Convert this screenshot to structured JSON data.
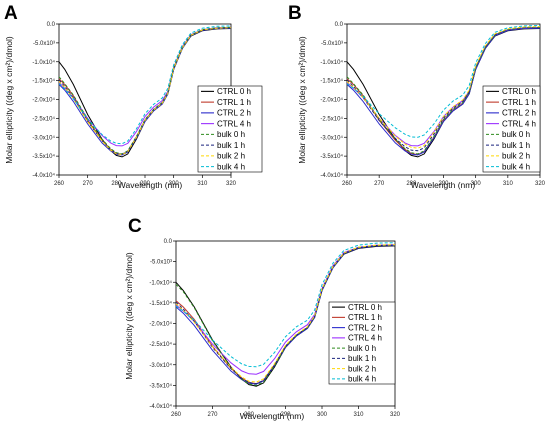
{
  "chart_data": [
    {
      "panel": "A",
      "type": "line",
      "xlabel": "Wavelength (nm)",
      "ylabel": "Molar ellipticity ((deg x cm²)/dmol)",
      "xlim": [
        260,
        320
      ],
      "ylim": [
        -40000,
        0
      ],
      "xticks": [
        260,
        270,
        280,
        290,
        300,
        310,
        320
      ],
      "yticks": [
        "0.0",
        "-5.0x10³",
        "-1.0x10⁴",
        "-1.5x10⁴",
        "-2.0x10⁴",
        "-2.5x10⁴",
        "-3.0x10⁴",
        "-3.5x10⁴",
        "-4.0x10⁴"
      ],
      "legend_position": "right",
      "x": [
        260,
        262,
        265,
        270,
        275,
        278,
        280,
        282,
        284,
        287,
        290,
        293,
        296,
        298,
        300,
        303,
        306,
        310,
        315,
        320
      ],
      "series": [
        {
          "name": "CTRL 0 h",
          "color": "#000000",
          "dash": "solid",
          "values": [
            -10000,
            -12000,
            -16000,
            -24000,
            -30500,
            -33500,
            -34800,
            -35200,
            -34400,
            -30500,
            -25800,
            -23000,
            -21200,
            -18500,
            -12000,
            -6500,
            -3200,
            -1800,
            -1300,
            -1200
          ]
        },
        {
          "name": "CTRL 1 h",
          "color": "#c0392b",
          "dash": "solid",
          "values": [
            -14500,
            -16000,
            -19000,
            -25500,
            -30800,
            -33200,
            -34300,
            -34600,
            -33800,
            -30000,
            -25500,
            -22800,
            -21000,
            -18300,
            -11800,
            -6300,
            -3000,
            -1600,
            -1100,
            -1000
          ]
        },
        {
          "name": "CTRL 2 h",
          "color": "#2b2bcc",
          "dash": "solid",
          "values": [
            -16000,
            -17500,
            -20500,
            -26500,
            -31500,
            -33600,
            -34500,
            -34700,
            -33900,
            -30200,
            -25800,
            -23000,
            -21200,
            -18500,
            -12000,
            -6500,
            -3100,
            -1700,
            -1200,
            -1100
          ]
        },
        {
          "name": "CTRL 4 h",
          "color": "#9b30ff",
          "dash": "solid",
          "values": [
            -15500,
            -17000,
            -19500,
            -25000,
            -29500,
            -31500,
            -32200,
            -32300,
            -31600,
            -28500,
            -24500,
            -22000,
            -20300,
            -17800,
            -11500,
            -6000,
            -2800,
            -1500,
            -1000,
            -900
          ]
        },
        {
          "name": "bulk 0 h",
          "color": "#2e8b1e",
          "dash": "dashed",
          "values": [
            -14000,
            -15800,
            -18800,
            -25200,
            -30500,
            -33000,
            -34100,
            -34400,
            -33600,
            -29800,
            -25300,
            -22600,
            -20800,
            -18100,
            -11600,
            -6200,
            -2900,
            -1500,
            -1000,
            -900
          ]
        },
        {
          "name": "bulk 1 h",
          "color": "#1a237e",
          "dash": "dashed",
          "values": [
            -14800,
            -16500,
            -19500,
            -25800,
            -30900,
            -33300,
            -34300,
            -34500,
            -33700,
            -29900,
            -25400,
            -22700,
            -20900,
            -18200,
            -11700,
            -6300,
            -3000,
            -1600,
            -1100,
            -1000
          ]
        },
        {
          "name": "bulk 2 h",
          "color": "#ffd700",
          "dash": "dashed",
          "values": [
            -15200,
            -16800,
            -19800,
            -25900,
            -31000,
            -33400,
            -34400,
            -34600,
            -33800,
            -30000,
            -25500,
            -22800,
            -21000,
            -18300,
            -11800,
            -6300,
            -3000,
            -1600,
            -1100,
            -1000
          ]
        },
        {
          "name": "bulk 4 h",
          "color": "#00bcd4",
          "dash": "dashed",
          "values": [
            -15800,
            -17200,
            -19800,
            -25200,
            -29300,
            -31000,
            -31600,
            -31700,
            -31000,
            -27800,
            -23800,
            -21300,
            -19600,
            -17000,
            -10800,
            -5500,
            -2400,
            -1100,
            -600,
            -500
          ]
        }
      ]
    },
    {
      "panel": "B",
      "type": "line",
      "xlabel": "Wavelength (nm)",
      "ylabel": "Molar ellipticity ((deg x cm²)/dmol)",
      "xlim": [
        260,
        320
      ],
      "ylim": [
        -40000,
        0
      ],
      "xticks": [
        260,
        270,
        280,
        290,
        300,
        310,
        320
      ],
      "yticks": [
        "0.0",
        "-5.0x10³",
        "-1.0x10⁴",
        "-1.5x10⁴",
        "-2.0x10⁴",
        "-2.5x10⁴",
        "-3.0x10⁴",
        "-3.5x10⁴",
        "-4.0x10⁴"
      ],
      "legend_position": "right",
      "x": [
        260,
        262,
        265,
        270,
        275,
        278,
        280,
        282,
        284,
        287,
        290,
        293,
        296,
        298,
        300,
        303,
        306,
        310,
        315,
        320
      ],
      "series": [
        {
          "name": "CTRL 0 h",
          "color": "#000000",
          "dash": "solid",
          "values": [
            -10000,
            -12000,
            -16000,
            -24000,
            -30500,
            -33500,
            -34800,
            -35200,
            -34400,
            -30500,
            -25800,
            -23000,
            -21200,
            -18500,
            -12000,
            -6500,
            -3200,
            -1800,
            -1300,
            -1200
          ]
        },
        {
          "name": "CTRL 1 h",
          "color": "#c0392b",
          "dash": "solid",
          "values": [
            -14500,
            -16000,
            -19000,
            -25500,
            -30800,
            -33200,
            -34300,
            -34600,
            -33800,
            -30000,
            -25500,
            -22800,
            -21000,
            -18300,
            -11800,
            -6300,
            -3000,
            -1600,
            -1100,
            -1000
          ]
        },
        {
          "name": "CTRL 2 h",
          "color": "#2b2bcc",
          "dash": "solid",
          "values": [
            -16000,
            -17500,
            -20500,
            -26500,
            -31500,
            -33600,
            -34500,
            -34700,
            -33900,
            -30200,
            -25800,
            -23000,
            -21200,
            -18500,
            -12000,
            -6500,
            -3100,
            -1700,
            -1200,
            -1100
          ]
        },
        {
          "name": "CTRL 4 h",
          "color": "#9b30ff",
          "dash": "solid",
          "values": [
            -15500,
            -17000,
            -19500,
            -25000,
            -29500,
            -31500,
            -32200,
            -32300,
            -31600,
            -28500,
            -24500,
            -22000,
            -20300,
            -17800,
            -11500,
            -6000,
            -2800,
            -1500,
            -1000,
            -900
          ]
        },
        {
          "name": "bulk 0 h",
          "color": "#2e8b1e",
          "dash": "dashed",
          "values": [
            -14000,
            -15800,
            -18800,
            -25200,
            -30500,
            -33000,
            -34100,
            -34400,
            -33600,
            -29800,
            -25300,
            -22600,
            -20800,
            -18100,
            -11600,
            -6200,
            -2900,
            -1500,
            -1000,
            -900
          ]
        },
        {
          "name": "bulk 1 h",
          "color": "#1a237e",
          "dash": "dashed",
          "values": [
            -14800,
            -16500,
            -19500,
            -25600,
            -30300,
            -32500,
            -33400,
            -33600,
            -32800,
            -29200,
            -24900,
            -22300,
            -20500,
            -17900,
            -11400,
            -6100,
            -2800,
            -1400,
            -900,
            -800
          ]
        },
        {
          "name": "bulk 2 h",
          "color": "#ffd700",
          "dash": "dashed",
          "values": [
            -15200,
            -16800,
            -19500,
            -25000,
            -29700,
            -31800,
            -32700,
            -32900,
            -32200,
            -28700,
            -24500,
            -21900,
            -20100,
            -17500,
            -11100,
            -5800,
            -2600,
            -1300,
            -800,
            -700
          ]
        },
        {
          "name": "bulk 4 h",
          "color": "#00bcd4",
          "dash": "dashed",
          "values": [
            -15800,
            -17000,
            -19200,
            -23800,
            -27500,
            -29200,
            -29900,
            -30000,
            -29400,
            -26500,
            -22800,
            -20400,
            -18800,
            -16300,
            -10300,
            -5200,
            -2200,
            -1000,
            -500,
            -400
          ]
        }
      ]
    },
    {
      "panel": "C",
      "type": "line",
      "xlabel": "Wavelength (nm)",
      "ylabel": "Molar ellipticity ((deg x cm²)/dmol)",
      "xlim": [
        260,
        320
      ],
      "ylim": [
        -40000,
        0
      ],
      "xticks": [
        260,
        270,
        280,
        290,
        300,
        310,
        320
      ],
      "yticks": [
        "0.0",
        "-5.0x10³",
        "-1.0x10⁴",
        "-1.5x10⁴",
        "-2.0x10⁴",
        "-2.5x10⁴",
        "-3.0x10⁴",
        "-3.5x10⁴",
        "-4.0x10⁴"
      ],
      "legend_position": "right",
      "x": [
        260,
        262,
        265,
        270,
        275,
        278,
        280,
        282,
        284,
        287,
        290,
        293,
        296,
        298,
        300,
        303,
        306,
        310,
        315,
        320
      ],
      "series": [
        {
          "name": "CTRL 0 h",
          "color": "#000000",
          "dash": "solid",
          "values": [
            -10000,
            -12000,
            -16000,
            -24000,
            -30500,
            -33500,
            -34800,
            -35200,
            -34400,
            -30500,
            -25800,
            -23000,
            -21200,
            -18500,
            -12000,
            -6500,
            -3200,
            -1800,
            -1300,
            -1200
          ]
        },
        {
          "name": "CTRL 1 h",
          "color": "#c0392b",
          "dash": "solid",
          "values": [
            -14500,
            -16000,
            -19000,
            -25500,
            -30800,
            -33200,
            -34300,
            -34600,
            -33800,
            -30000,
            -25500,
            -22800,
            -21000,
            -18300,
            -11800,
            -6300,
            -3000,
            -1600,
            -1100,
            -1000
          ]
        },
        {
          "name": "CTRL 2 h",
          "color": "#2b2bcc",
          "dash": "solid",
          "values": [
            -16000,
            -17500,
            -20500,
            -26500,
            -31500,
            -33600,
            -34500,
            -34700,
            -33900,
            -30200,
            -25800,
            -23000,
            -21200,
            -18500,
            -12000,
            -6500,
            -3100,
            -1700,
            -1200,
            -1100
          ]
        },
        {
          "name": "CTRL 4 h",
          "color": "#9b30ff",
          "dash": "solid",
          "values": [
            -15500,
            -17000,
            -19500,
            -25000,
            -29500,
            -31500,
            -32200,
            -32300,
            -31600,
            -28500,
            -24500,
            -22000,
            -20300,
            -17800,
            -11500,
            -6000,
            -2800,
            -1500,
            -1000,
            -900
          ]
        },
        {
          "name": "bulk 0 h",
          "color": "#2e8b1e",
          "dash": "dashed",
          "values": [
            -10500,
            -12300,
            -16200,
            -24200,
            -30600,
            -33500,
            -34700,
            -35000,
            -34200,
            -30300,
            -25600,
            -22800,
            -21000,
            -18300,
            -11800,
            -6300,
            -3000,
            -1600,
            -1100,
            -1000
          ]
        },
        {
          "name": "bulk 1 h",
          "color": "#1a237e",
          "dash": "dashed",
          "values": [
            -14800,
            -16500,
            -19500,
            -25800,
            -30900,
            -33300,
            -34300,
            -34600,
            -33800,
            -30000,
            -25500,
            -22800,
            -21000,
            -18300,
            -11800,
            -6300,
            -3000,
            -1600,
            -1100,
            -1000
          ]
        },
        {
          "name": "bulk 2 h",
          "color": "#ffd700",
          "dash": "dashed",
          "values": [
            -15200,
            -16800,
            -19700,
            -25600,
            -30600,
            -33000,
            -34000,
            -34200,
            -33400,
            -29700,
            -25300,
            -22600,
            -20800,
            -18100,
            -11600,
            -6200,
            -2900,
            -1500,
            -1000,
            -900
          ]
        },
        {
          "name": "bulk 4 h",
          "color": "#00bcd4",
          "dash": "dashed",
          "values": [
            -15800,
            -17000,
            -19200,
            -24000,
            -28000,
            -29800,
            -30400,
            -30500,
            -29900,
            -27000,
            -23200,
            -20800,
            -19200,
            -16700,
            -10600,
            -5400,
            -2300,
            -1000,
            -500,
            -400
          ]
        }
      ]
    }
  ]
}
